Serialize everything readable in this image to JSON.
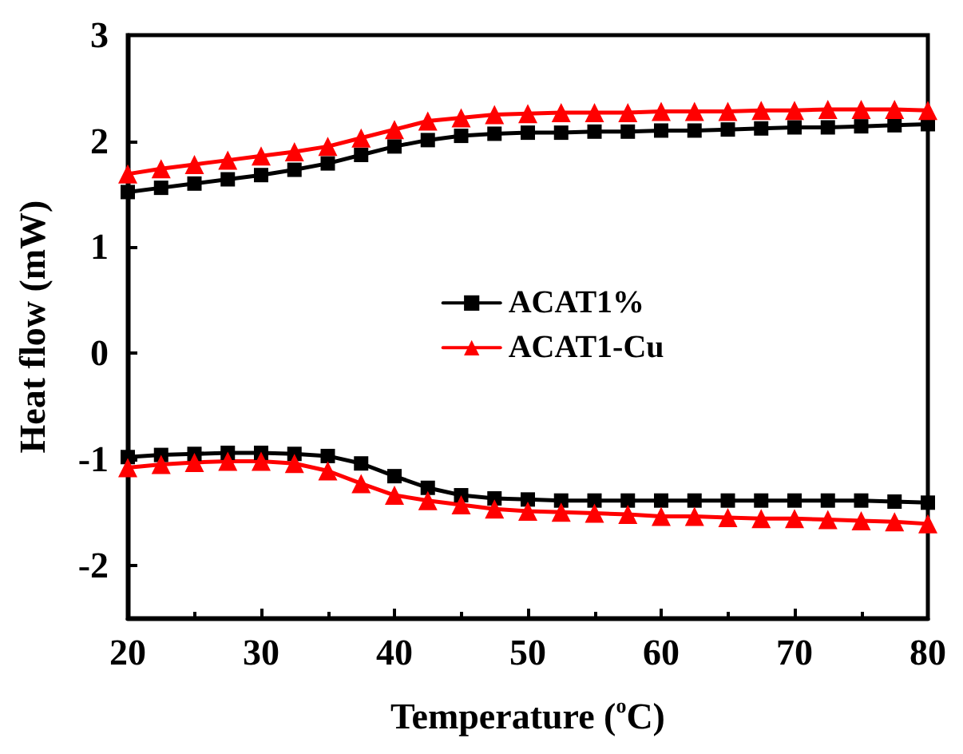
{
  "chart_data": {
    "type": "line",
    "xlabel": "Temperature ($^{o}$C)",
    "ylabel": "Heat flow (mW)",
    "x": [
      20,
      22.5,
      25,
      27.5,
      30,
      32.5,
      35,
      37.5,
      40,
      42.5,
      45,
      47.5,
      50,
      52.5,
      55,
      57.5,
      60,
      62.5,
      65,
      67.5,
      70,
      72.5,
      75,
      77.5,
      80
    ],
    "xlim": [
      20,
      80
    ],
    "xticks": [
      20,
      30,
      40,
      50,
      60,
      70,
      80
    ],
    "ylim": [
      -2.5,
      3
    ],
    "yticks": [
      -2,
      -1,
      0,
      1,
      2,
      3
    ],
    "grid": false,
    "legend": "center",
    "line_style": "solid",
    "series": [
      {
        "name": "ACAT1%",
        "color": "#000000",
        "marker": "square",
        "values": [
          1.52,
          1.56,
          1.6,
          1.64,
          1.68,
          1.73,
          1.79,
          1.87,
          1.95,
          2.01,
          2.05,
          2.07,
          2.08,
          2.08,
          2.09,
          2.09,
          2.1,
          2.1,
          2.11,
          2.12,
          2.13,
          2.13,
          2.14,
          2.15,
          2.16
        ]
      },
      {
        "name": "ACAT1-Cu",
        "color": "#ff0000",
        "marker": "triangle",
        "values": [
          1.69,
          1.74,
          1.78,
          1.82,
          1.86,
          1.9,
          1.95,
          2.03,
          2.11,
          2.19,
          2.22,
          2.25,
          2.26,
          2.27,
          2.27,
          2.27,
          2.28,
          2.28,
          2.28,
          2.29,
          2.29,
          2.3,
          2.3,
          2.3,
          2.29
        ]
      },
      {
        "color": "#000000",
        "marker": "square",
        "values": [
          -0.98,
          -0.96,
          -0.95,
          -0.94,
          -0.94,
          -0.95,
          -0.97,
          -1.04,
          -1.16,
          -1.27,
          -1.34,
          -1.37,
          -1.38,
          -1.39,
          -1.39,
          -1.39,
          -1.39,
          -1.39,
          -1.39,
          -1.39,
          -1.39,
          -1.39,
          -1.39,
          -1.4,
          -1.41
        ]
      },
      {
        "color": "#ff0000",
        "marker": "triangle",
        "values": [
          -1.08,
          -1.05,
          -1.03,
          -1.02,
          -1.02,
          -1.04,
          -1.11,
          -1.23,
          -1.34,
          -1.39,
          -1.43,
          -1.47,
          -1.49,
          -1.5,
          -1.51,
          -1.52,
          -1.54,
          -1.54,
          -1.55,
          -1.56,
          -1.56,
          -1.57,
          -1.58,
          -1.59,
          -1.61
        ]
      }
    ]
  }
}
